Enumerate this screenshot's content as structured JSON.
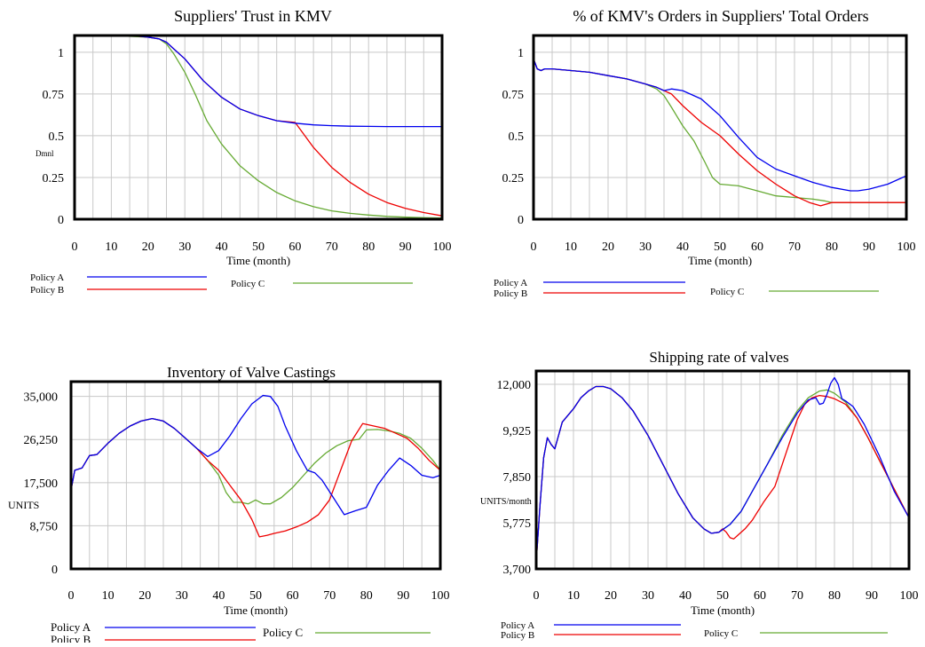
{
  "chart_data": [
    {
      "type": "line",
      "title": "Suppliers' Trust in KMV",
      "xlabel": "Time (month)",
      "ylabel": "Dmnl",
      "xlim": [
        0,
        100
      ],
      "ylim": [
        0,
        1.1
      ],
      "xticks": [
        0,
        10,
        20,
        30,
        40,
        50,
        60,
        70,
        80,
        90,
        100
      ],
      "yticks": [
        0,
        0.25,
        0.5,
        0.75,
        1
      ],
      "ytick_labels": [
        "0",
        "0.25",
        "0.5",
        "0.75",
        "1"
      ],
      "grid": true,
      "legend_position": "bottom",
      "series": [
        {
          "name": "Policy A",
          "color": "#0000ee",
          "x": [
            0,
            10,
            15,
            20,
            23,
            25,
            27,
            30,
            35,
            40,
            45,
            50,
            55,
            60,
            65,
            70,
            75,
            80,
            85,
            90,
            95,
            100
          ],
          "y": [
            1.1,
            1.1,
            1.1,
            1.09,
            1.08,
            1.06,
            1.02,
            0.96,
            0.83,
            0.73,
            0.66,
            0.62,
            0.59,
            0.575,
            0.565,
            0.56,
            0.557,
            0.556,
            0.555,
            0.555,
            0.555,
            0.555
          ]
        },
        {
          "name": "Policy B",
          "color": "#ee0000",
          "x": [
            0,
            10,
            15,
            20,
            23,
            25,
            27,
            30,
            35,
            40,
            45,
            50,
            55,
            60,
            65,
            70,
            75,
            80,
            85,
            90,
            95,
            100
          ],
          "y": [
            1.1,
            1.1,
            1.1,
            1.09,
            1.08,
            1.06,
            1.02,
            0.96,
            0.83,
            0.73,
            0.66,
            0.62,
            0.59,
            0.58,
            0.43,
            0.31,
            0.22,
            0.15,
            0.1,
            0.065,
            0.04,
            0.02
          ]
        },
        {
          "name": "Policy C",
          "color": "#66aa33",
          "x": [
            0,
            10,
            20,
            23,
            25,
            27,
            30,
            33,
            36,
            40,
            45,
            50,
            55,
            60,
            65,
            70,
            75,
            80,
            85,
            90,
            95,
            100
          ],
          "y": [
            1.1,
            1.1,
            1.09,
            1.08,
            1.05,
            0.99,
            0.88,
            0.74,
            0.59,
            0.45,
            0.32,
            0.23,
            0.16,
            0.11,
            0.075,
            0.05,
            0.035,
            0.025,
            0.017,
            0.012,
            0.009,
            0.007
          ]
        }
      ]
    },
    {
      "type": "line",
      "title": "% of KMV's Orders in Suppliers' Total Orders",
      "xlabel": "Time (month)",
      "ylabel": "",
      "xlim": [
        0,
        100
      ],
      "ylim": [
        0,
        1.1
      ],
      "xticks": [
        0,
        10,
        20,
        30,
        40,
        50,
        60,
        70,
        80,
        90,
        100
      ],
      "yticks": [
        0,
        0.25,
        0.5,
        0.75,
        1
      ],
      "ytick_labels": [
        "0",
        "0.25",
        "0.5",
        "0.75",
        "1"
      ],
      "grid": true,
      "legend_position": "bottom",
      "series": [
        {
          "name": "Policy A",
          "color": "#0000ee",
          "x": [
            0,
            1,
            2,
            3,
            5,
            10,
            15,
            20,
            25,
            30,
            33,
            35,
            37,
            40,
            45,
            50,
            55,
            60,
            65,
            70,
            75,
            80,
            85,
            87,
            90,
            95,
            100
          ],
          "y": [
            0.96,
            0.9,
            0.89,
            0.9,
            0.9,
            0.89,
            0.88,
            0.86,
            0.84,
            0.81,
            0.79,
            0.77,
            0.78,
            0.77,
            0.72,
            0.62,
            0.49,
            0.37,
            0.3,
            0.26,
            0.22,
            0.19,
            0.17,
            0.17,
            0.18,
            0.21,
            0.26
          ]
        },
        {
          "name": "Policy B",
          "color": "#ee0000",
          "x": [
            0,
            1,
            2,
            3,
            5,
            10,
            15,
            20,
            25,
            30,
            33,
            35,
            37,
            40,
            45,
            50,
            55,
            60,
            65,
            70,
            74,
            77,
            80,
            85,
            90,
            95,
            100
          ],
          "y": [
            0.96,
            0.9,
            0.89,
            0.9,
            0.9,
            0.89,
            0.88,
            0.86,
            0.84,
            0.81,
            0.79,
            0.77,
            0.75,
            0.68,
            0.58,
            0.5,
            0.39,
            0.29,
            0.21,
            0.14,
            0.1,
            0.08,
            0.1,
            0.1,
            0.1,
            0.1,
            0.1
          ]
        },
        {
          "name": "Policy C",
          "color": "#66aa33",
          "x": [
            0,
            1,
            2,
            3,
            5,
            10,
            15,
            20,
            25,
            30,
            33,
            35,
            37,
            40,
            43,
            46,
            48,
            50,
            55,
            60,
            65,
            70,
            75,
            78,
            80,
            85,
            90,
            95,
            100
          ],
          "y": [
            0.96,
            0.9,
            0.89,
            0.9,
            0.9,
            0.89,
            0.88,
            0.86,
            0.84,
            0.81,
            0.78,
            0.74,
            0.67,
            0.56,
            0.47,
            0.34,
            0.25,
            0.21,
            0.2,
            0.17,
            0.14,
            0.13,
            0.12,
            0.11,
            0.1,
            0.1,
            0.1,
            0.1,
            0.1
          ]
        }
      ]
    },
    {
      "type": "line",
      "title": "Inventory of Valve Castings",
      "xlabel": "Time (month)",
      "ylabel": "UNITS",
      "xlim": [
        0,
        100
      ],
      "ylim": [
        0,
        38000
      ],
      "xticks": [
        0,
        10,
        20,
        30,
        40,
        50,
        60,
        70,
        80,
        90,
        100
      ],
      "yticks": [
        0,
        8750,
        17500,
        26250,
        35000
      ],
      "ytick_labels": [
        "0",
        "8,750",
        "17,500",
        "26,250",
        "35,000"
      ],
      "grid": true,
      "legend_position": "bottom",
      "series": [
        {
          "name": "Policy A",
          "color": "#0000ee",
          "x": [
            0,
            1,
            3,
            5,
            7,
            10,
            13,
            16,
            19,
            22,
            25,
            28,
            31,
            34,
            37,
            40,
            43,
            46,
            49,
            52,
            54,
            56,
            58,
            61,
            64,
            66,
            68,
            71,
            74,
            77,
            80,
            83,
            86,
            89,
            92,
            95,
            98,
            100
          ],
          "y": [
            16000,
            20000,
            20500,
            23000,
            23200,
            25500,
            27500,
            29000,
            30000,
            30500,
            30000,
            28500,
            26500,
            24500,
            22800,
            24000,
            27000,
            30500,
            33500,
            35200,
            35000,
            33000,
            29000,
            24000,
            20000,
            19500,
            18000,
            14500,
            11000,
            11800,
            12500,
            17000,
            20000,
            22500,
            21000,
            19000,
            18500,
            19000
          ]
        },
        {
          "name": "Policy B",
          "color": "#ee0000",
          "x": [
            0,
            1,
            3,
            5,
            7,
            10,
            13,
            16,
            19,
            22,
            25,
            28,
            31,
            34,
            37,
            40,
            43,
            46,
            49,
            51,
            53,
            55,
            58,
            61,
            64,
            67,
            70,
            73,
            76,
            79,
            82,
            85,
            88,
            91,
            94,
            97,
            100
          ],
          "y": [
            16000,
            20000,
            20500,
            23000,
            23200,
            25500,
            27500,
            29000,
            30000,
            30500,
            30000,
            28500,
            26500,
            24500,
            22000,
            20000,
            17000,
            14000,
            10000,
            6500,
            6800,
            7200,
            7700,
            8500,
            9500,
            11000,
            14000,
            20000,
            26000,
            29500,
            29000,
            28500,
            27500,
            26500,
            24500,
            22000,
            20000
          ]
        },
        {
          "name": "Policy C",
          "color": "#66aa33",
          "x": [
            0,
            1,
            3,
            5,
            7,
            10,
            13,
            16,
            19,
            22,
            25,
            28,
            31,
            34,
            37,
            40,
            42,
            44,
            46,
            48,
            50,
            52,
            54,
            57,
            60,
            63,
            66,
            69,
            72,
            75,
            78,
            80,
            83,
            86,
            89,
            92,
            95,
            98,
            100
          ],
          "y": [
            16000,
            20000,
            20500,
            23000,
            23200,
            25500,
            27500,
            29000,
            30000,
            30500,
            30000,
            28500,
            26500,
            24500,
            22000,
            19000,
            15500,
            13500,
            13500,
            13200,
            14000,
            13200,
            13200,
            14500,
            16500,
            19000,
            21500,
            23500,
            25000,
            26000,
            26300,
            28200,
            28300,
            28000,
            27500,
            26500,
            24500,
            22000,
            20000
          ]
        }
      ]
    },
    {
      "type": "line",
      "title": "Shipping rate of valves",
      "xlabel": "Time (month)",
      "ylabel": "UNITS/month",
      "xlim": [
        0,
        100
      ],
      "ylim": [
        3700,
        12600
      ],
      "xticks": [
        0,
        10,
        20,
        30,
        40,
        50,
        60,
        70,
        80,
        90,
        100
      ],
      "yticks": [
        3700,
        5775,
        7850,
        9925,
        12000
      ],
      "ytick_labels": [
        "3,700",
        "5,775",
        "7,850",
        "9,925",
        "12,000"
      ],
      "grid": true,
      "legend_position": "bottom",
      "series": [
        {
          "name": "Policy A",
          "color": "#0000ee",
          "x": [
            0,
            1,
            2,
            3,
            4,
            5,
            6,
            7,
            8,
            10,
            12,
            14,
            16,
            18,
            20,
            23,
            26,
            30,
            34,
            38,
            42,
            45,
            47,
            49,
            52,
            55,
            58,
            62,
            66,
            70,
            73,
            75,
            76,
            77,
            78,
            79,
            80,
            81,
            82,
            83,
            85,
            88,
            92,
            96,
            100
          ],
          "y": [
            4000,
            6500,
            8700,
            9600,
            9300,
            9100,
            9700,
            10300,
            10500,
            10900,
            11400,
            11700,
            11900,
            11900,
            11800,
            11400,
            10800,
            9700,
            8400,
            7100,
            6000,
            5500,
            5300,
            5350,
            5700,
            6300,
            7200,
            8400,
            9600,
            10700,
            11300,
            11400,
            11100,
            11150,
            11550,
            12050,
            12300,
            12000,
            11350,
            11250,
            11000,
            10200,
            8800,
            7200,
            6000
          ]
        },
        {
          "name": "Policy B",
          "color": "#ee0000",
          "x": [
            0,
            1,
            2,
            3,
            4,
            5,
            6,
            7,
            8,
            10,
            12,
            14,
            16,
            18,
            20,
            23,
            26,
            30,
            34,
            38,
            42,
            45,
            47,
            49,
            50,
            51,
            52,
            53,
            54,
            56,
            58,
            61,
            64,
            67,
            70,
            72,
            74,
            76,
            78,
            80,
            83,
            86,
            89,
            92,
            96,
            100
          ],
          "y": [
            4000,
            6500,
            8700,
            9600,
            9300,
            9100,
            9700,
            10300,
            10500,
            10900,
            11400,
            11700,
            11900,
            11900,
            11800,
            11400,
            10800,
            9700,
            8400,
            7100,
            6000,
            5500,
            5300,
            5350,
            5500,
            5350,
            5100,
            5050,
            5200,
            5500,
            5900,
            6700,
            7400,
            8900,
            10400,
            11100,
            11400,
            11500,
            11450,
            11350,
            11100,
            10500,
            9600,
            8600,
            7300,
            6000
          ]
        },
        {
          "name": "Policy C",
          "color": "#66aa33",
          "x": [
            0,
            1,
            2,
            3,
            4,
            5,
            6,
            7,
            8,
            10,
            12,
            14,
            16,
            18,
            20,
            23,
            26,
            30,
            34,
            38,
            42,
            45,
            47,
            49,
            52,
            55,
            58,
            62,
            66,
            70,
            73,
            76,
            78,
            80,
            83,
            86,
            89,
            92,
            96,
            100
          ],
          "y": [
            4000,
            6500,
            8700,
            9600,
            9300,
            9100,
            9700,
            10300,
            10500,
            10900,
            11400,
            11700,
            11900,
            11900,
            11800,
            11400,
            10800,
            9700,
            8400,
            7100,
            6000,
            5500,
            5300,
            5350,
            5700,
            6300,
            7200,
            8400,
            9700,
            10800,
            11400,
            11700,
            11750,
            11600,
            11200,
            10500,
            9600,
            8600,
            7300,
            6000
          ]
        }
      ]
    }
  ]
}
